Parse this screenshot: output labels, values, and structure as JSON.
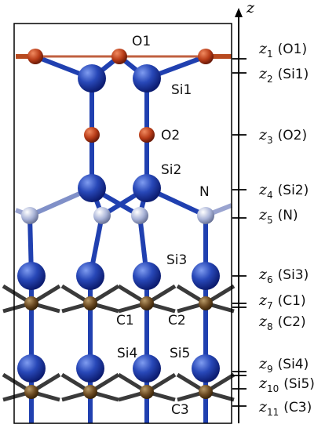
{
  "axis": {
    "label": "z"
  },
  "atoms": [
    {
      "label": "O1"
    },
    {
      "label": "Si1"
    },
    {
      "label": "O2"
    },
    {
      "label": "Si2"
    },
    {
      "label": "N"
    },
    {
      "label": "Si3"
    },
    {
      "label": "C1"
    },
    {
      "label": "C2"
    },
    {
      "label": "Si4"
    },
    {
      "label": "Si5"
    },
    {
      "label": "C3"
    }
  ],
  "levels": [
    {
      "var": "z",
      "sub": "1",
      "atom": "(O1)"
    },
    {
      "var": "z",
      "sub": "2",
      "atom": "(Si1)"
    },
    {
      "var": "z",
      "sub": "3",
      "atom": "(O2)"
    },
    {
      "var": "z",
      "sub": "4",
      "atom": "(Si2)"
    },
    {
      "var": "z",
      "sub": "5",
      "atom": "(N)"
    },
    {
      "var": "z",
      "sub": "6",
      "atom": "(Si3)"
    },
    {
      "var": "z",
      "sub": "7",
      "atom": "(C1)"
    },
    {
      "var": "z",
      "sub": "8",
      "atom": "(C2)"
    },
    {
      "var": "z",
      "sub": "9",
      "atom": "(Si4)"
    },
    {
      "var": "z",
      "sub": "10",
      "atom": "(Si5)"
    },
    {
      "var": "z",
      "sub": "11",
      "atom": "(C3)"
    }
  ]
}
